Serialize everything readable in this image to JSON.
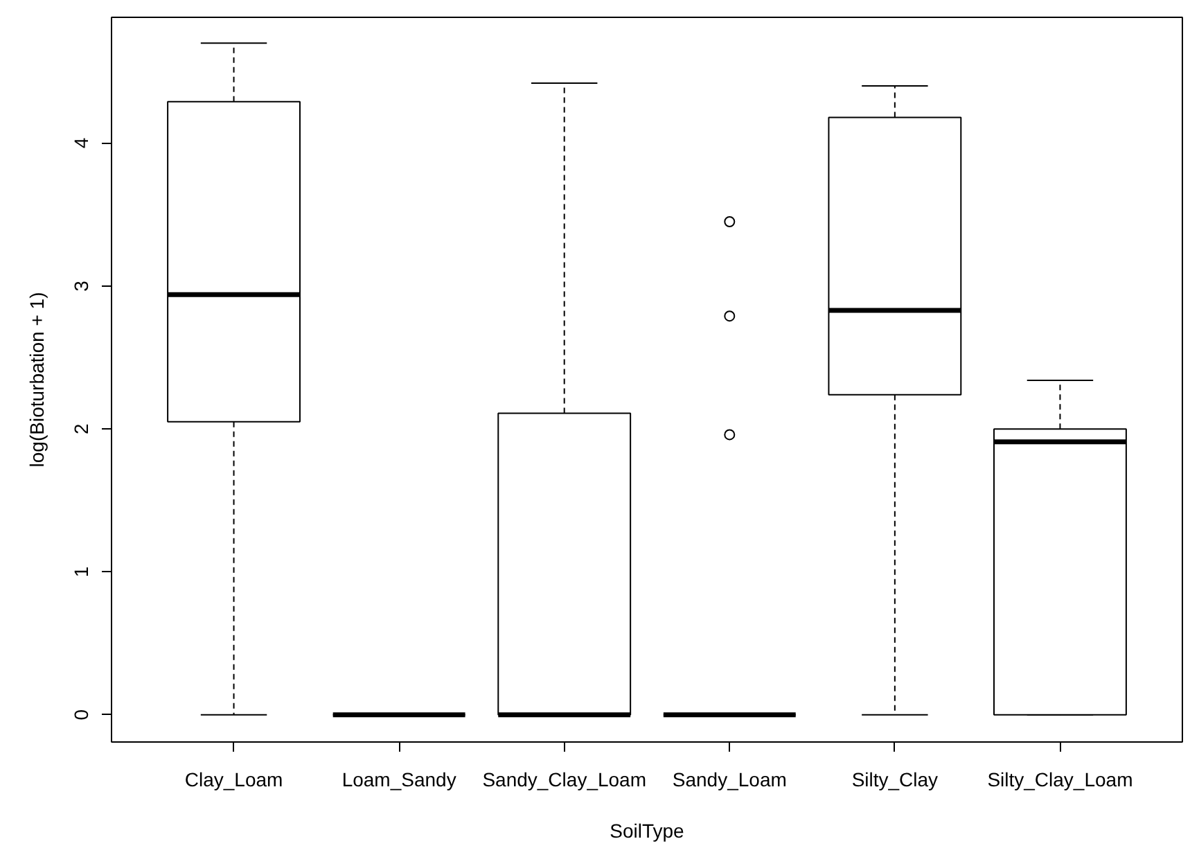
{
  "chart_data": {
    "type": "box",
    "xlabel": "SoilType",
    "ylabel": "log(Bioturbation + 1)",
    "categories": [
      "Clay_Loam",
      "Loam_Sandy",
      "Sandy_Clay_Loam",
      "Sandy_Loam",
      "Silty_Clay",
      "Silty_Clay_Loam"
    ],
    "boxes": [
      {
        "low": 0,
        "q1": 2.05,
        "median": 2.94,
        "q3": 4.29,
        "high": 4.7
      },
      {
        "low": 0,
        "q1": 0,
        "median": 0,
        "q3": 0,
        "high": 0
      },
      {
        "low": 0,
        "q1": 0,
        "median": 0,
        "q3": 2.11,
        "high": 4.42
      },
      {
        "low": 0,
        "q1": 0,
        "median": 0,
        "q3": 0,
        "high": 0,
        "outliers": [
          1.96,
          2.79,
          3.45
        ]
      },
      {
        "low": 0,
        "q1": 2.24,
        "median": 2.83,
        "q3": 4.18,
        "high": 4.4
      },
      {
        "low": 0,
        "q1": 0,
        "median": 1.91,
        "q3": 2.0,
        "high": 2.34
      }
    ],
    "ylim": [
      -0.19,
      4.88
    ],
    "yticks": [
      0,
      1,
      2,
      3,
      4
    ],
    "grid": false
  }
}
